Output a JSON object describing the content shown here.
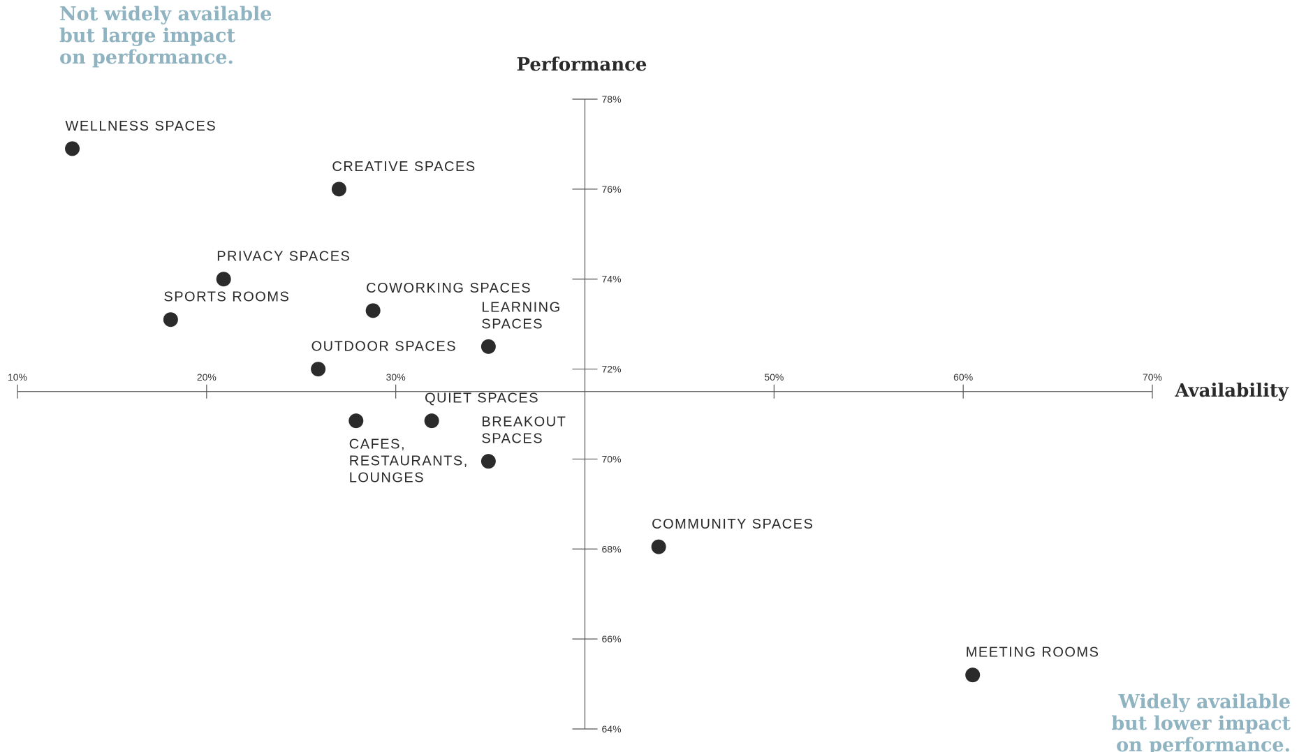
{
  "chart_data": {
    "type": "scatter",
    "title": "",
    "xlabel": "Availability",
    "ylabel": "Performance",
    "xlim": [
      10,
      70
    ],
    "ylim": [
      64,
      78
    ],
    "x_axis_crosses_y_at": 71.5,
    "y_axis_crosses_x_at": 40,
    "x_ticks": [
      {
        "value": 10,
        "label": "10%"
      },
      {
        "value": 20,
        "label": "20%"
      },
      {
        "value": 30,
        "label": "30%"
      },
      {
        "value": 50,
        "label": "50%"
      },
      {
        "value": 60,
        "label": "60%"
      },
      {
        "value": 70,
        "label": "70%"
      }
    ],
    "y_ticks": [
      {
        "value": 78,
        "label": "78%"
      },
      {
        "value": 76,
        "label": "76%"
      },
      {
        "value": 74,
        "label": "74%"
      },
      {
        "value": 72,
        "label": "72%"
      },
      {
        "value": 70,
        "label": "70%"
      },
      {
        "value": 68,
        "label": "68%"
      },
      {
        "value": 66,
        "label": "66%"
      },
      {
        "value": 64,
        "label": "64%"
      }
    ],
    "grid": false,
    "point_color": "#2b2b2b",
    "points": [
      {
        "label": [
          "WELLNESS SPACES"
        ],
        "x": 12.9,
        "y": 76.9,
        "label_pos": "above"
      },
      {
        "label": [
          "CREATIVE SPACES"
        ],
        "x": 27.0,
        "y": 76.0,
        "label_pos": "above"
      },
      {
        "label": [
          "PRIVACY SPACES"
        ],
        "x": 20.9,
        "y": 74.0,
        "label_pos": "above"
      },
      {
        "label": [
          "SPORTS ROOMS"
        ],
        "x": 18.1,
        "y": 73.1,
        "label_pos": "above"
      },
      {
        "label": [
          "COWORKING SPACES"
        ],
        "x": 28.8,
        "y": 73.3,
        "label_pos": "above"
      },
      {
        "label": [
          "LEARNING",
          "SPACES"
        ],
        "x": 34.9,
        "y": 72.5,
        "label_pos": "above"
      },
      {
        "label": [
          "OUTDOOR SPACES"
        ],
        "x": 25.9,
        "y": 72.0,
        "label_pos": "above"
      },
      {
        "label": [
          "QUIET SPACES"
        ],
        "x": 31.9,
        "y": 70.85,
        "label_pos": "above"
      },
      {
        "label": [
          "CAFES,",
          "RESTAURANTS,",
          "LOUNGES"
        ],
        "x": 27.9,
        "y": 70.85,
        "label_pos": "below"
      },
      {
        "label": [
          "BREAKOUT",
          "SPACES"
        ],
        "x": 34.9,
        "y": 69.95,
        "label_pos": "above"
      },
      {
        "label": [
          "COMMUNITY SPACES"
        ],
        "x": 43.9,
        "y": 68.05,
        "label_pos": "above"
      },
      {
        "label": [
          "MEETING ROOMS"
        ],
        "x": 60.5,
        "y": 65.2,
        "label_pos": "above"
      }
    ]
  },
  "annotations": {
    "top_left": [
      "Not widely available",
      "but large impact",
      "on performance."
    ],
    "bottom_right": [
      "Widely available",
      "but lower impact",
      "on performance."
    ]
  },
  "colors": {
    "annotation": "#8fb3c0",
    "axis": "#555555",
    "text": "#2a2a2a"
  }
}
